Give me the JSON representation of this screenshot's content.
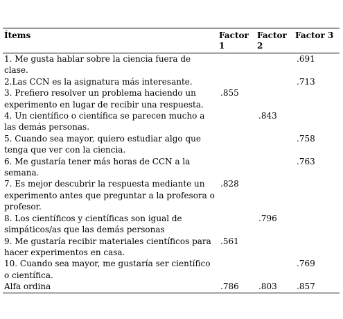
{
  "headers": {
    "items": "Ítems",
    "factor1": "Factor 1",
    "factor2": "Factor 2",
    "factor3": "Factor 3"
  },
  "rows": [
    {
      "item": "1. Me gusta hablar sobre la ciencia fuera de clase.",
      "f1": "",
      "f2": "",
      "f3": ".691"
    },
    {
      "item": "2.Las CCN es la asignatura más interesante.",
      "f1": "",
      "f2": "",
      "f3": ".713"
    },
    {
      "item": "3. Prefiero resolver un problema haciendo un experimento en lugar de recibir una respuesta.",
      "f1": ".855",
      "f2": "",
      "f3": ""
    },
    {
      "item": "4. Un científico o científica se parecen mucho a las demás personas.",
      "f1": "",
      "f2": ".843",
      "f3": ""
    },
    {
      "item": "5. Cuando sea mayor, quiero estudiar algo que tenga que ver con la ciencia.",
      "f1": "",
      "f2": "",
      "f3": ".758"
    },
    {
      "item": "6. Me gustaría tener más horas de CCN a la semana.",
      "f1": "",
      "f2": "",
      "f3": ".763"
    },
    {
      "item": "7. Es mejor descubrir la respuesta mediante un experimento antes que preguntar a la profesora o profesor.",
      "f1": ".828",
      "f2": "",
      "f3": ""
    },
    {
      "item": "8. Los científicos y científicas son igual de simpáticos/as que las demás personas",
      "f1": "",
      "f2": ".796",
      "f3": ""
    },
    {
      "item": "9. Me gustaría recibir materiales científicos para hacer experimentos en casa.",
      "f1": ".561",
      "f2": "",
      "f3": ""
    },
    {
      "item": "10. Cuando sea mayor, me gustaría ser científico o científica.",
      "f1": "",
      "f2": "",
      "f3": ".769"
    },
    {
      "item": "Alfa ordina",
      "f1": ".786",
      "f2": ".803",
      "f3": ".857"
    }
  ]
}
